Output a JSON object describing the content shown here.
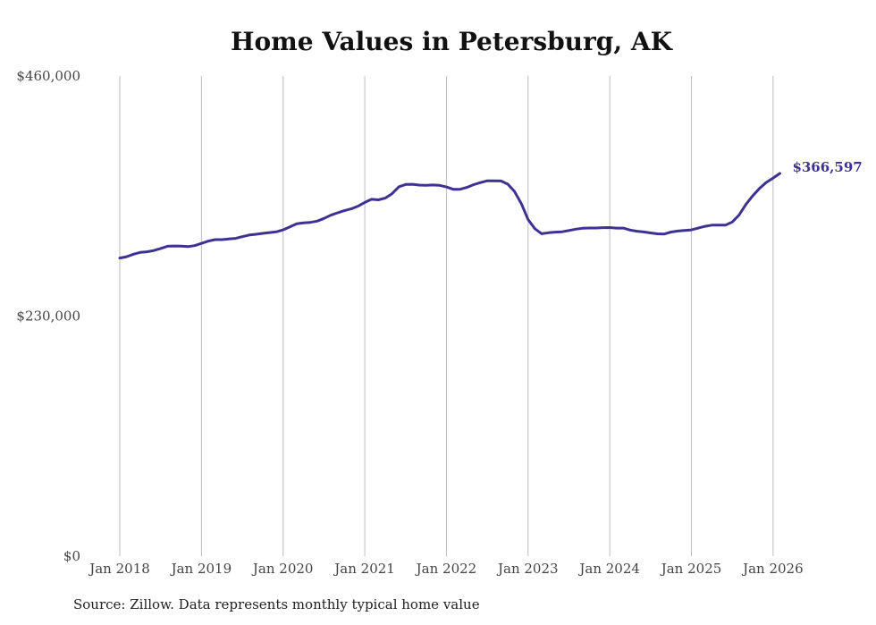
{
  "chart_data": {
    "type": "line",
    "title": "Home Values in Petersburg, AK",
    "source": "Source: Zillow. Data represents monthly typical home value",
    "xlabel": "",
    "ylabel": "",
    "ylim": [
      0,
      460000
    ],
    "y_ticks": [
      {
        "value": 0,
        "label": "$0"
      },
      {
        "value": 230000,
        "label": "$230,000"
      },
      {
        "value": 460000,
        "label": "$460,000"
      }
    ],
    "x_ticks": [
      {
        "value": 2018,
        "label": "Jan 2018"
      },
      {
        "value": 2019,
        "label": "Jan 2019"
      },
      {
        "value": 2020,
        "label": "Jan 2020"
      },
      {
        "value": 2021,
        "label": "Jan 2021"
      },
      {
        "value": 2022,
        "label": "Jan 2022"
      },
      {
        "value": 2023,
        "label": "Jan 2023"
      },
      {
        "value": 2024,
        "label": "Jan 2024"
      },
      {
        "value": 2025,
        "label": "Jan 2025"
      },
      {
        "value": 2026,
        "label": "Jan 2026"
      }
    ],
    "xlim": [
      2018,
      2026.1
    ],
    "grid": "vertical",
    "line_color": "#3d3291",
    "end_label": "$366,597",
    "series": [
      {
        "name": "Home value",
        "points": [
          [
            2018.0,
            285600
          ],
          [
            2018.083,
            286900
          ],
          [
            2018.167,
            289300
          ],
          [
            2018.25,
            291000
          ],
          [
            2018.333,
            291600
          ],
          [
            2018.417,
            292800
          ],
          [
            2018.5,
            294800
          ],
          [
            2018.583,
            296900
          ],
          [
            2018.667,
            297200
          ],
          [
            2018.75,
            297100
          ],
          [
            2018.833,
            296600
          ],
          [
            2018.917,
            297500
          ],
          [
            2019.0,
            299600
          ],
          [
            2019.083,
            301800
          ],
          [
            2019.167,
            303200
          ],
          [
            2019.25,
            303200
          ],
          [
            2019.333,
            303800
          ],
          [
            2019.417,
            304400
          ],
          [
            2019.5,
            306100
          ],
          [
            2019.583,
            307600
          ],
          [
            2019.667,
            308400
          ],
          [
            2019.75,
            309200
          ],
          [
            2019.833,
            310000
          ],
          [
            2019.917,
            310700
          ],
          [
            2020.0,
            312600
          ],
          [
            2020.083,
            315500
          ],
          [
            2020.167,
            318500
          ],
          [
            2020.25,
            319300
          ],
          [
            2020.333,
            319800
          ],
          [
            2020.417,
            321000
          ],
          [
            2020.5,
            323500
          ],
          [
            2020.583,
            326600
          ],
          [
            2020.667,
            328900
          ],
          [
            2020.75,
            331000
          ],
          [
            2020.833,
            332700
          ],
          [
            2020.917,
            335300
          ],
          [
            2021.0,
            338900
          ],
          [
            2021.083,
            341900
          ],
          [
            2021.167,
            341400
          ],
          [
            2021.25,
            343000
          ],
          [
            2021.333,
            347200
          ],
          [
            2021.417,
            353900
          ],
          [
            2021.5,
            356100
          ],
          [
            2021.583,
            356300
          ],
          [
            2021.667,
            355500
          ],
          [
            2021.75,
            355300
          ],
          [
            2021.833,
            355600
          ],
          [
            2021.917,
            355200
          ],
          [
            2022.0,
            353700
          ],
          [
            2022.083,
            351500
          ],
          [
            2022.167,
            351500
          ],
          [
            2022.25,
            353300
          ],
          [
            2022.333,
            355900
          ],
          [
            2022.417,
            357900
          ],
          [
            2022.5,
            359600
          ],
          [
            2022.583,
            359600
          ],
          [
            2022.667,
            359400
          ],
          [
            2022.75,
            356400
          ],
          [
            2022.833,
            349500
          ],
          [
            2022.917,
            337800
          ],
          [
            2023.0,
            322400
          ],
          [
            2023.083,
            313700
          ],
          [
            2023.167,
            308900
          ],
          [
            2023.25,
            309800
          ],
          [
            2023.333,
            310400
          ],
          [
            2023.417,
            310800
          ],
          [
            2023.5,
            312000
          ],
          [
            2023.583,
            313300
          ],
          [
            2023.667,
            314100
          ],
          [
            2023.75,
            314400
          ],
          [
            2023.833,
            314400
          ],
          [
            2023.917,
            314700
          ],
          [
            2024.0,
            314800
          ],
          [
            2024.083,
            314300
          ],
          [
            2024.167,
            314300
          ],
          [
            2024.25,
            312400
          ],
          [
            2024.333,
            311300
          ],
          [
            2024.417,
            310600
          ],
          [
            2024.5,
            309700
          ],
          [
            2024.583,
            308800
          ],
          [
            2024.667,
            308600
          ],
          [
            2024.75,
            310500
          ],
          [
            2024.833,
            311500
          ],
          [
            2024.917,
            312100
          ],
          [
            2025.0,
            312600
          ],
          [
            2025.083,
            314300
          ],
          [
            2025.167,
            316000
          ],
          [
            2025.25,
            317100
          ],
          [
            2025.333,
            317100
          ],
          [
            2025.417,
            317100
          ],
          [
            2025.5,
            320100
          ],
          [
            2025.583,
            326800
          ],
          [
            2025.667,
            336900
          ],
          [
            2025.75,
            345100
          ],
          [
            2025.833,
            352200
          ],
          [
            2025.917,
            358100
          ],
          [
            2026.0,
            362300
          ],
          [
            2026.083,
            366597
          ]
        ]
      }
    ]
  }
}
